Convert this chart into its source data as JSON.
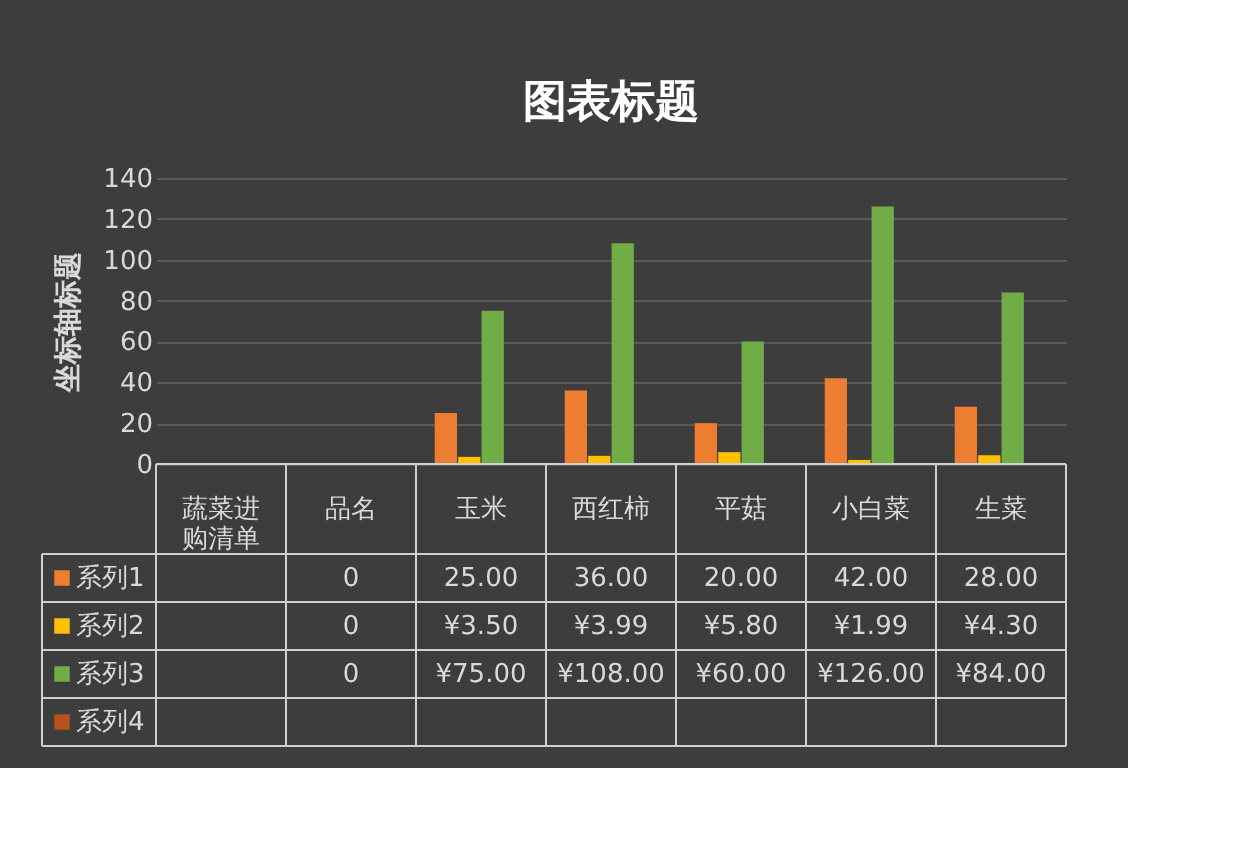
{
  "chart_data": {
    "type": "bar",
    "title": "图表标题",
    "ylabel": "坐标轴标题",
    "categories": [
      "蔬菜进购清单",
      "品名",
      "玉米",
      "西红柿",
      "平菇",
      "小白菜",
      "生菜"
    ],
    "series": [
      {
        "name": "系列1",
        "color": "#ed7d31",
        "values": [
          null,
          0,
          25,
          36,
          20,
          42,
          28
        ],
        "value_labels": [
          null,
          "0",
          "25.00",
          "36.00",
          "20.00",
          "42.00",
          "28.00"
        ]
      },
      {
        "name": "系列2",
        "color": "#ffc000",
        "values": [
          null,
          0,
          3.5,
          3.99,
          5.8,
          1.99,
          4.3
        ],
        "value_labels": [
          null,
          "0",
          "¥3.50",
          "¥3.99",
          "¥5.80",
          "¥1.99",
          "¥4.30"
        ]
      },
      {
        "name": "系列3",
        "color": "#70ad47",
        "values": [
          null,
          0,
          75,
          108,
          60,
          126,
          84
        ],
        "value_labels": [
          null,
          "0",
          "¥75.00",
          "¥108.00",
          "¥60.00",
          "¥126.00",
          "¥84.00"
        ]
      },
      {
        "name": "系列4",
        "color": "#b4541a",
        "values": [
          null,
          null,
          null,
          null,
          null,
          null,
          null
        ],
        "value_labels": [
          null,
          null,
          null,
          null,
          null,
          null,
          null
        ]
      }
    ],
    "ylim": [
      0,
      140
    ],
    "yticks": [
      0,
      20,
      40,
      60,
      80,
      100,
      120,
      140
    ],
    "grid": "y",
    "legend": "bottom"
  }
}
